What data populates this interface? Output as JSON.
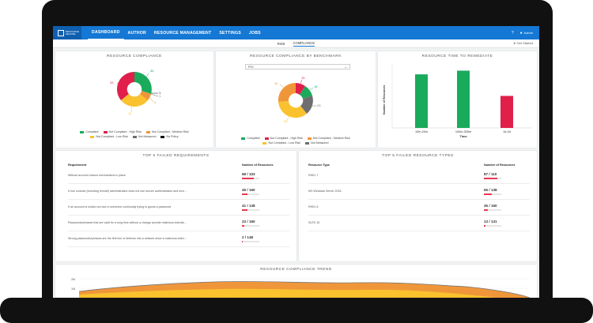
{
  "app": {
    "logo_text": "RESOURCE SECURE"
  },
  "nav": {
    "items": [
      "DASHBOARD",
      "AUTHOR",
      "RESOURCE MANAGEMENT",
      "SETTINGS",
      "JOBS"
    ],
    "active": "DASHBOARD",
    "help": "?",
    "user": "Admin"
  },
  "subnav": {
    "tabs": [
      "RISK",
      "COMPLIANCE"
    ],
    "active": "COMPLIANCE",
    "getting_started": "Get Started"
  },
  "compliance_chart": {
    "title": "RESOURCE COMPLIANCE",
    "labels": {
      "green": "36",
      "red": "33",
      "orange": "4",
      "yellow": "12",
      "gray": "1",
      "black": "1"
    },
    "legend": [
      "Compliant",
      "Not Compliant - High Risk",
      "Not Compliant - Medium Risk",
      "Not Compliant - Low Risk",
      "Not Measured",
      "No Policy"
    ]
  },
  "benchmark_chart": {
    "title": "RESOURCE COMPLIANCE BY BENCHMARK",
    "select_value": "PCI",
    "labels": {
      "orange": "40",
      "red": "15",
      "green": "16",
      "gray": "23",
      "yellow": "50"
    },
    "legend": [
      "Compliant",
      "Not Compliant - High Risk",
      "Not Compliant - Medium Risk",
      "Not Compliant - Low Risk",
      "Not Measured"
    ]
  },
  "remediate_chart": {
    "title": "RESOURCE TIME TO REMEDIATE",
    "ylabel": "Number of Resources",
    "xlabel": "Time",
    "categories": [
      "10m-20m",
      "100m-300m",
      "1d-2d"
    ]
  },
  "chart_data": [
    {
      "type": "bar",
      "title": "RESOURCE TIME TO REMEDIATE",
      "xlabel": "Time",
      "ylabel": "Number of Resources",
      "categories": [
        "10m-20m",
        "100m-300m",
        "1d-2d"
      ],
      "values": [
        0.87,
        0.93,
        0.52
      ],
      "colors": [
        "#1aaa5c",
        "#1aaa5c",
        "#e0204b"
      ]
    }
  ],
  "failed_requirements": {
    "title": "TOP 5 FAILED REQUIREMENTS",
    "col1": "Requirement",
    "col2": "Number of Resources",
    "rows": [
      {
        "text": "Without account lockout mechanisms in place",
        "value": "68 / 103",
        "pct": 0.66
      },
      {
        "text": "If non console (including remote) administration does not use secure authentication and encr…",
        "value": "49 / 160",
        "pct": 0.31
      },
      {
        "text": "If an account is locked out due to someone continually trying to guess a password",
        "value": "41 / 138",
        "pct": 0.3
      },
      {
        "text": "Passwords/phrases that are valid for a long time without a change provide malicious individe…",
        "value": "23 / 160",
        "pct": 0.14
      },
      {
        "text": "Strong passwords/phrases are the first line of defense into a network since a malicious indivi…",
        "value": "2 / 148",
        "pct": 0.02
      }
    ]
  },
  "failed_types": {
    "title": "TOP 5 FAILED RESOURCE TYPES",
    "col1": "Resource Type",
    "col2": "Number of Resources",
    "rows": [
      {
        "text": "RHEL 7",
        "value": "87 / 110",
        "pct": 0.79
      },
      {
        "text": "MS Windows Server 2016",
        "value": "65 / 138",
        "pct": 0.47
      },
      {
        "text": "RHEL 6",
        "value": "35 / 150",
        "pct": 0.23
      },
      {
        "text": "SLES 15",
        "value": "13 / 131",
        "pct": 0.1
      }
    ]
  },
  "trend": {
    "title": "RESOURCE COMPLIANCE TREND",
    "yticks": [
      "2M",
      "1M"
    ]
  },
  "colors": {
    "green": "#1aaa5c",
    "red": "#e0204b",
    "orange": "#f0963a",
    "yellow": "#f9c22e",
    "gray": "#6e6e6e",
    "black": "#111111",
    "blue": "#1478d4"
  }
}
